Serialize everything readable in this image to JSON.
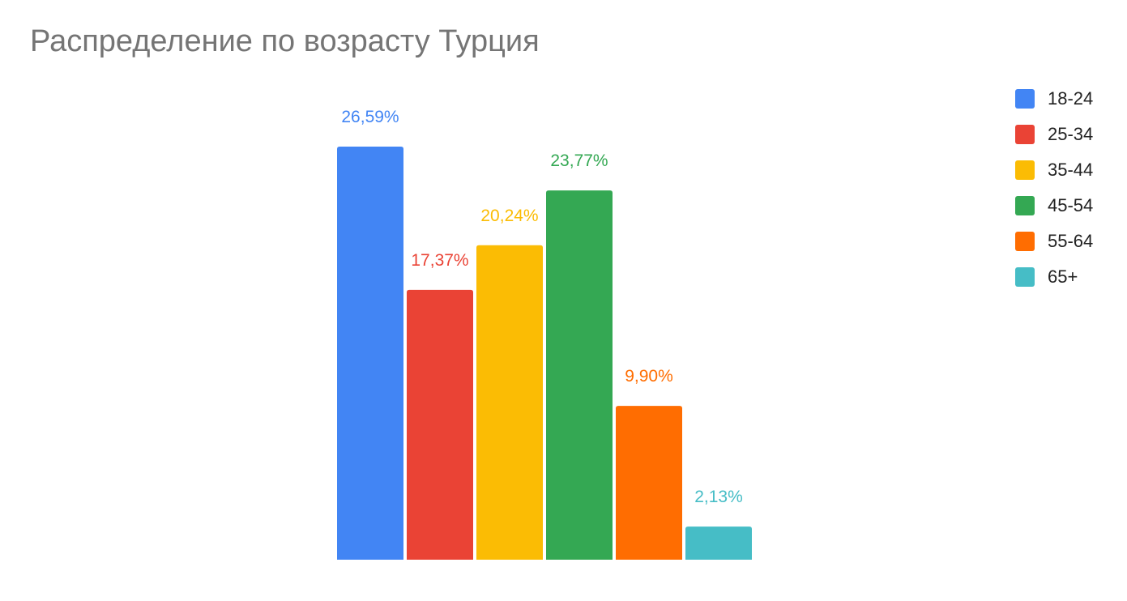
{
  "chart_data": {
    "type": "bar",
    "title": "Распределение по возрасту Турция",
    "xlabel": "",
    "ylabel": "",
    "ylim": [
      0,
      26.59
    ],
    "grid": false,
    "legend_position": "right",
    "categories": [
      "18-24",
      "25-34",
      "35-44",
      "45-54",
      "55-64",
      "65+"
    ],
    "values": [
      26.59,
      17.37,
      20.24,
      23.77,
      9.9,
      2.13
    ],
    "value_labels": [
      "26,59%",
      "17,37%",
      "20,24%",
      "23,77%",
      "9,90%",
      "2,13%"
    ],
    "colors": [
      "#4285F4",
      "#EA4335",
      "#FBBC04",
      "#34A853",
      "#FF6D01",
      "#46BDC6"
    ]
  }
}
